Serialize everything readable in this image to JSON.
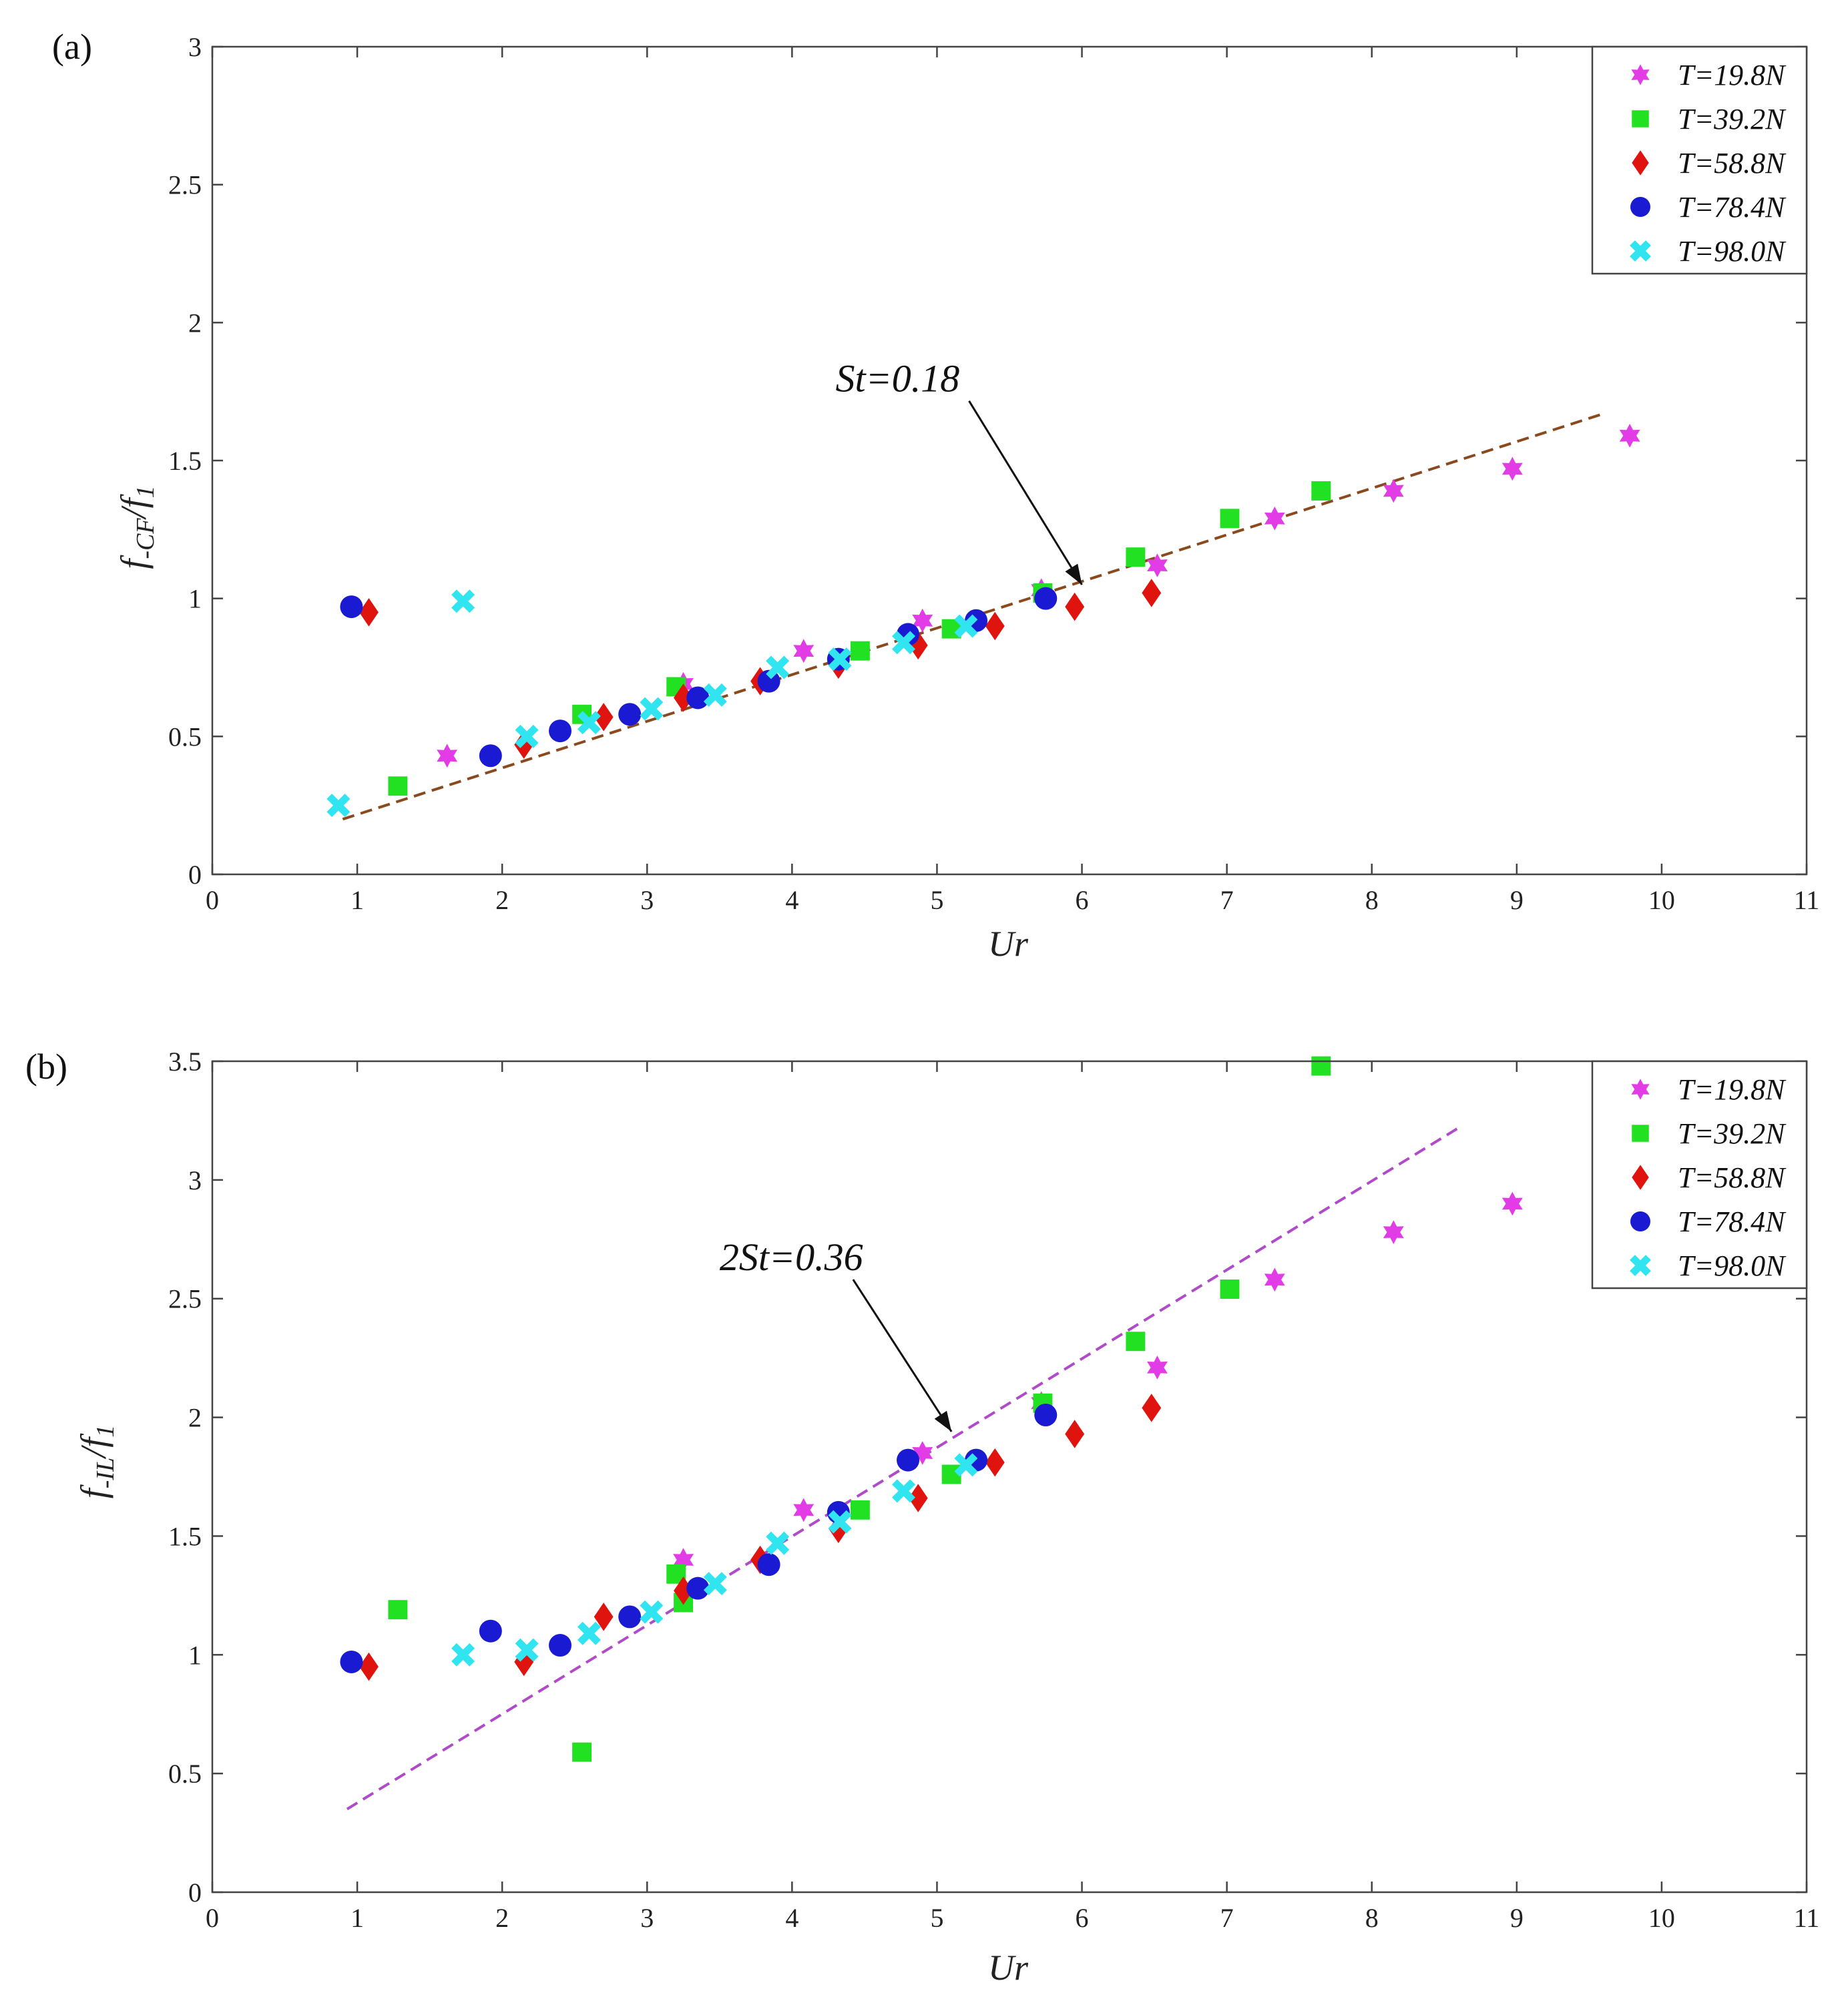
{
  "colors": {
    "T19.8": "#e23ce6",
    "T39.2": "#22e022",
    "T58.8": "#e0140e",
    "T78.4": "#1a1ad2",
    "T98.0": "#30e4f0",
    "fit_a": "#8b4a1e",
    "fit_b": "#b04ac8",
    "axis": "#444444"
  },
  "chart_data": [
    {
      "type": "scatter",
      "panel_label": "(a)",
      "xlabel": "Ur",
      "ylabel_main": "f",
      "ylabel_sub1": "-CF",
      "ylabel_slash": "/f",
      "ylabel_sub2": "1",
      "xlim": [
        0,
        11
      ],
      "ylim": [
        0,
        3
      ],
      "xticks": [
        0,
        1,
        2,
        3,
        4,
        5,
        6,
        7,
        8,
        9,
        10,
        11
      ],
      "yticks": [
        0,
        0.5,
        1,
        1.5,
        2,
        2.5,
        3
      ],
      "ytick_labels": [
        "0",
        "0.5",
        "1",
        "1.5",
        "2",
        "2.5",
        "3"
      ],
      "legend": [
        "T=19.8N",
        "T=39.2N",
        "T=58.8N",
        "T=78.4N",
        "T=98.0N"
      ],
      "fit_line": {
        "x": [
          0.9,
          9.6
        ],
        "y": [
          0.2,
          1.67
        ],
        "style": "dashed"
      },
      "annotation": {
        "text": "St=0.18",
        "x": 4.3,
        "y": 1.75,
        "arrow_to": [
          6.0,
          1.05
        ]
      },
      "series": [
        {
          "name": "T=19.8N",
          "marker": "star",
          "x": [
            1.62,
            3.25,
            4.08,
            4.9,
            5.72,
            6.52,
            7.33,
            8.15,
            8.97,
            9.78
          ],
          "y": [
            0.43,
            0.69,
            0.81,
            0.92,
            1.03,
            1.12,
            1.29,
            1.39,
            1.47,
            1.59
          ]
        },
        {
          "name": "T=39.2N",
          "marker": "square",
          "x": [
            1.28,
            2.55,
            3.2,
            4.47,
            5.1,
            5.73,
            6.37,
            7.02,
            7.65
          ],
          "y": [
            0.32,
            0.58,
            0.68,
            0.81,
            0.89,
            1.02,
            1.15,
            1.29,
            1.39
          ]
        },
        {
          "name": "T=58.8N",
          "marker": "diamond",
          "x": [
            1.08,
            2.15,
            2.7,
            3.25,
            3.78,
            4.32,
            4.87,
            5.4,
            5.95,
            6.48
          ],
          "y": [
            0.95,
            0.47,
            0.57,
            0.64,
            0.7,
            0.76,
            0.83,
            0.9,
            0.97,
            1.02
          ]
        },
        {
          "name": "T=78.4N",
          "marker": "circle",
          "x": [
            0.96,
            1.92,
            2.4,
            2.88,
            3.35,
            3.84,
            4.32,
            4.8,
            5.27,
            5.75
          ],
          "y": [
            0.97,
            0.43,
            0.52,
            0.58,
            0.64,
            0.7,
            0.78,
            0.87,
            0.92,
            1.0
          ]
        },
        {
          "name": "T=98.0N",
          "marker": "cross",
          "x": [
            0.87,
            1.73,
            2.17,
            2.6,
            3.03,
            3.47,
            3.9,
            4.33,
            4.77,
            5.2
          ],
          "y": [
            0.25,
            0.99,
            0.5,
            0.55,
            0.6,
            0.65,
            0.75,
            0.78,
            0.84,
            0.9
          ]
        }
      ]
    },
    {
      "type": "scatter",
      "panel_label": "(b)",
      "xlabel": "Ur",
      "ylabel_main": "f",
      "ylabel_sub1": "-IL",
      "ylabel_slash": "/f",
      "ylabel_sub2": "1",
      "xlim": [
        0,
        11
      ],
      "ylim": [
        0,
        3.5
      ],
      "xticks": [
        0,
        1,
        2,
        3,
        4,
        5,
        6,
        7,
        8,
        9,
        10,
        11
      ],
      "yticks": [
        0,
        0.5,
        1,
        1.5,
        2,
        2.5,
        3,
        3.5
      ],
      "ytick_labels": [
        "0",
        "0.5",
        "1",
        "1.5",
        "2",
        "2.5",
        "3",
        "3.5"
      ],
      "legend": [
        "T=19.8N",
        "T=39.2N",
        "T=58.8N",
        "T=78.4N",
        "T=98.0N"
      ],
      "fit_line": {
        "x": [
          0.93,
          8.6
        ],
        "y": [
          0.35,
          3.22
        ],
        "style": "dashed"
      },
      "annotation": {
        "text": "2St=0.36",
        "x": 3.5,
        "y": 2.62,
        "arrow_to": [
          5.1,
          1.94
        ]
      },
      "series": [
        {
          "name": "T=19.8N",
          "marker": "star",
          "x": [
            3.25,
            4.08,
            4.9,
            5.72,
            6.52,
            7.33,
            8.15,
            8.97
          ],
          "y": [
            1.4,
            1.61,
            1.85,
            2.06,
            2.21,
            2.58,
            2.78,
            2.9
          ]
        },
        {
          "name": "T=39.2N",
          "marker": "square",
          "x": [
            1.28,
            2.55,
            3.2,
            3.25,
            4.47,
            5.1,
            5.73,
            6.37,
            7.02,
            7.65
          ],
          "y": [
            1.19,
            0.59,
            1.34,
            1.22,
            1.61,
            1.76,
            2.06,
            2.32,
            2.54,
            3.48
          ]
        },
        {
          "name": "T=58.8N",
          "marker": "diamond",
          "x": [
            1.08,
            2.15,
            2.7,
            3.25,
            3.78,
            4.32,
            4.87,
            5.4,
            5.95,
            6.48
          ],
          "y": [
            0.95,
            0.97,
            1.16,
            1.27,
            1.4,
            1.53,
            1.66,
            1.81,
            1.93,
            2.04
          ]
        },
        {
          "name": "T=78.4N",
          "marker": "circle",
          "x": [
            0.96,
            1.92,
            2.4,
            2.88,
            3.35,
            3.84,
            4.32,
            4.8,
            5.27,
            5.75
          ],
          "y": [
            0.97,
            1.1,
            1.04,
            1.16,
            1.28,
            1.38,
            1.6,
            1.82,
            1.82,
            2.01
          ]
        },
        {
          "name": "T=98.0N",
          "marker": "cross",
          "x": [
            1.73,
            2.17,
            2.6,
            3.03,
            3.47,
            3.9,
            4.33,
            4.77,
            5.2
          ],
          "y": [
            1.0,
            1.02,
            1.09,
            1.18,
            1.3,
            1.47,
            1.56,
            1.69,
            1.8
          ]
        }
      ]
    }
  ]
}
